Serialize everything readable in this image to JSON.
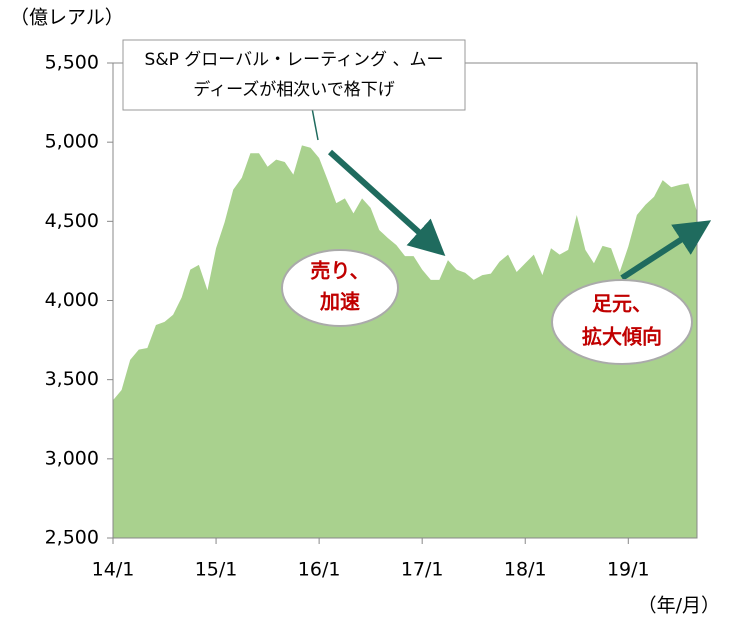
{
  "chart_data": {
    "type": "area",
    "y_unit_label": "（億レアル）",
    "x_unit_label": "（年/月）",
    "categories": [
      "14/1",
      null,
      null,
      null,
      null,
      null,
      null,
      null,
      null,
      null,
      null,
      null,
      "15/1",
      null,
      null,
      null,
      null,
      null,
      null,
      null,
      null,
      null,
      null,
      null,
      "16/1",
      null,
      null,
      null,
      null,
      null,
      null,
      null,
      null,
      null,
      null,
      null,
      "17/1",
      null,
      null,
      null,
      null,
      null,
      null,
      null,
      null,
      null,
      null,
      null,
      "18/1",
      null,
      null,
      null,
      null,
      null,
      null,
      null,
      null,
      null,
      null,
      null,
      "19/1",
      null,
      null,
      null,
      null,
      null,
      null,
      null,
      null
    ],
    "series": [
      {
        "color": "#a9d18e",
        "values": [
          3370,
          3435,
          3625,
          3690,
          3700,
          3845,
          3865,
          3910,
          4020,
          4195,
          4225,
          4065,
          4330,
          4495,
          4700,
          4775,
          4930,
          4930,
          4845,
          4890,
          4875,
          4795,
          4980,
          4965,
          4900,
          4760,
          4615,
          4645,
          4550,
          4645,
          4585,
          4445,
          4395,
          4350,
          4280,
          4280,
          4195,
          4130,
          4130,
          4255,
          4195,
          4175,
          4130,
          4160,
          4170,
          4245,
          4290,
          4180,
          4235,
          4290,
          4160,
          4330,
          4290,
          4320,
          4540,
          4320,
          4235,
          4345,
          4330,
          4180,
          4340,
          4540,
          4605,
          4655,
          4760,
          4715,
          4730,
          4740,
          4560
        ]
      }
    ],
    "ylim": [
      2500,
      5500
    ],
    "yticks": [
      {
        "value": 2500,
        "label": "2,500"
      },
      {
        "value": 3000,
        "label": "3,000"
      },
      {
        "value": 3500,
        "label": "3,500"
      },
      {
        "value": 4000,
        "label": "4,000"
      },
      {
        "value": 4500,
        "label": "4,500"
      },
      {
        "value": 5000,
        "label": "5,000"
      },
      {
        "value": 5500,
        "label": "5,500"
      }
    ],
    "annotations": [
      {
        "lines": [
          "S&P グローバル・レーティング 、ムー",
          "ディーズが相次いで格下げ"
        ]
      },
      {
        "lines": [
          "売り、",
          "加速"
        ]
      },
      {
        "lines": [
          "足元、",
          "拡大傾向"
        ]
      }
    ]
  }
}
